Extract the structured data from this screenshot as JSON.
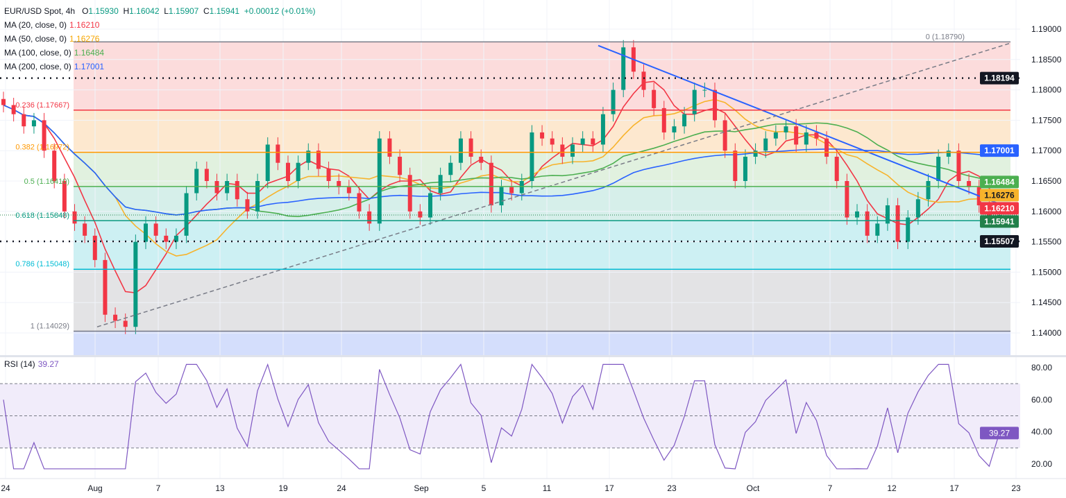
{
  "header": {
    "symbol": "EUR/USD Spot, 4h",
    "open_label": "O",
    "open": "1.15930",
    "high_label": "H",
    "high": "1.16042",
    "low_label": "L",
    "low": "1.15907",
    "close_label": "C",
    "close": "1.15941",
    "change": "+0.00012 (+0.01%)"
  },
  "indicators": [
    {
      "label": "MA (20, close, 0)",
      "value": "1.16210",
      "color": "#f23645"
    },
    {
      "label": "MA (50, close, 0)",
      "value": "1.16276",
      "color": "#f7b32b"
    },
    {
      "label": "MA (100, close, 0)",
      "value": "1.16484",
      "color": "#4caf50"
    },
    {
      "label": "MA (200, close, 0)",
      "value": "1.17001",
      "color": "#2962ff"
    }
  ],
  "rsi": {
    "label": "RSI (14)",
    "value": "39.27",
    "color": "#7e57c2",
    "levels": [
      70,
      50,
      30
    ],
    "ylim": [
      10,
      85
    ],
    "ticks": [
      "80.00",
      "60.00",
      "40.00",
      "20.00"
    ]
  },
  "chart_data": {
    "type": "candlestick",
    "symbol": "EUR/USD",
    "timeframe": "4h",
    "ylim": [
      1.136,
      1.1935
    ],
    "y_ticks": [
      "1.19000",
      "1.18500",
      "1.18000",
      "1.17500",
      "1.17000",
      "1.16500",
      "1.16000",
      "1.15500",
      "1.15000",
      "1.14500",
      "1.14000"
    ],
    "x_ticks": [
      "24",
      "Aug",
      "7",
      "13",
      "19",
      "24",
      "Sep",
      "5",
      "11",
      "17",
      "23",
      "Oct",
      "7",
      "12",
      "17",
      "23"
    ],
    "close_samples": [
      1.1775,
      1.176,
      1.174,
      1.175,
      1.17,
      1.165,
      1.16,
      1.158,
      1.156,
      1.152,
      1.143,
      1.142,
      1.141,
      1.155,
      1.158,
      1.156,
      1.155,
      1.156,
      1.163,
      1.167,
      1.165,
      1.163,
      1.165,
      1.162,
      1.16,
      1.165,
      1.171,
      1.168,
      1.165,
      1.168,
      1.17,
      1.167,
      1.165,
      1.164,
      1.163,
      1.16,
      1.158,
      1.172,
      1.169,
      1.166,
      1.16,
      1.159,
      1.163,
      1.166,
      1.168,
      1.172,
      1.169,
      1.168,
      1.161,
      1.164,
      1.163,
      1.165,
      1.173,
      1.172,
      1.171,
      1.169,
      1.171,
      1.172,
      1.171,
      1.176,
      1.18,
      1.187,
      1.183,
      1.18,
      1.177,
      1.173,
      1.174,
      1.176,
      1.18,
      1.18,
      1.175,
      1.17,
      1.165,
      1.169,
      1.17,
      1.172,
      1.173,
      1.174,
      1.171,
      1.173,
      1.172,
      1.169,
      1.165,
      1.159,
      1.16,
      1.156,
      1.158,
      1.161,
      1.155,
      1.159,
      1.162,
      1.165,
      1.169,
      1.17,
      1.165,
      1.164,
      1.161,
      1.159,
      1.15941
    ],
    "fibonacci": [
      {
        "ratio": "0",
        "price": 1.1879,
        "label": "0 (1.18790)",
        "color": "#787b86",
        "zone": "#fcdcdc"
      },
      {
        "ratio": "0.236",
        "price": 1.17667,
        "label": "0.236 (1.17667)",
        "color": "#f23645",
        "zone": "#fde8cf"
      },
      {
        "ratio": "0.382",
        "price": 1.16972,
        "label": "0.382 (1.16972)",
        "color": "#ff9800",
        "zone": "#e1f1df"
      },
      {
        "ratio": "0.5",
        "price": 1.1641,
        "label": "0.5 (1.16410)",
        "color": "#4caf50",
        "zone": "#d6efea"
      },
      {
        "ratio": "0.618",
        "price": 1.15848,
        "label": "0.618 (1.15848)",
        "color": "#089981",
        "zone": "#cdf0f3"
      },
      {
        "ratio": "0.786",
        "price": 1.15048,
        "label": "0.786 (1.15048)",
        "color": "#00bcd4",
        "zone": "#e3e3e5"
      },
      {
        "ratio": "1",
        "price": 1.14029,
        "label": "1 (1.14029)",
        "color": "#787b86",
        "zone": "#d4defc"
      }
    ],
    "horizontal_levels": [
      {
        "price": 1.18194,
        "label": "1.18194",
        "style": "dotted",
        "color": "#131722"
      },
      {
        "price": 1.15507,
        "label": "1.15507",
        "style": "dotted",
        "color": "#131722"
      }
    ],
    "price_badges": [
      {
        "label": "1.17001",
        "bg": "#2962ff",
        "fg": "#ffffff",
        "price": 1.17001
      },
      {
        "label": "1.16484",
        "bg": "#4caf50",
        "fg": "#ffffff",
        "price": 1.16484
      },
      {
        "label": "1.16276",
        "bg": "#f7b32b",
        "fg": "#131722",
        "price": 1.16276
      },
      {
        "label": "1.16210",
        "bg": "#f23645",
        "fg": "#ffffff",
        "price": 1.1621
      },
      {
        "label": "1.15941",
        "bg": "#22804a",
        "fg": "#ffffff",
        "price": 1.15941
      }
    ],
    "trend_lines": [
      {
        "name": "downtrend",
        "color": "#2962ff",
        "style": "solid",
        "from_price": 1.1873,
        "to_price": 1.1605
      },
      {
        "name": "uptrend",
        "color": "#787b86",
        "style": "dashed",
        "from_price": 1.141,
        "to_price": 1.1877
      }
    ],
    "colors": {
      "up": "#089981",
      "down": "#f23645"
    }
  }
}
